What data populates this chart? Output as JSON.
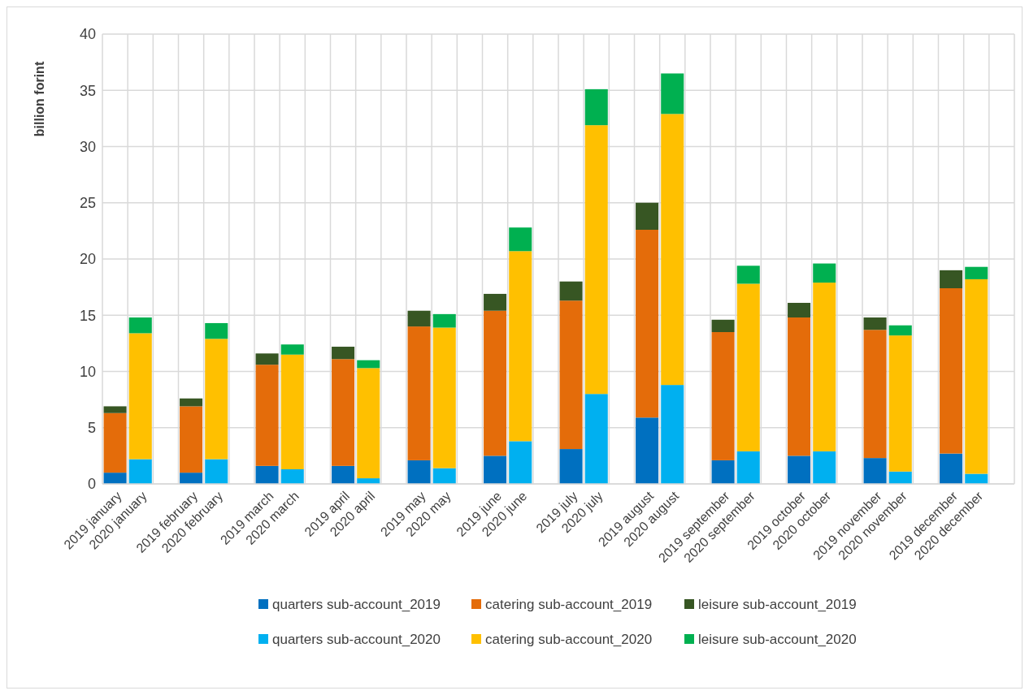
{
  "chart_data": {
    "type": "bar",
    "stacked": true,
    "ylabel": "billion forint",
    "categories": [
      "2019 january",
      "2020 january",
      null,
      "2019 february",
      "2020 february",
      null,
      "2019 march",
      "2020 march",
      null,
      "2019 april",
      "2020 april",
      null,
      "2019 may",
      "2020 may",
      null,
      "2019 june",
      "2020 june",
      null,
      "2019 july",
      "2020 july",
      null,
      "2019 august",
      "2020 august",
      null,
      "2019 september",
      "2020 september",
      null,
      "2019 october",
      "2020 october",
      null,
      "2019 november",
      "2020 november",
      null,
      "2019 december",
      "2020 december",
      null
    ],
    "series": [
      {
        "name": "quarters sub-account_2019",
        "color": "#0070c0",
        "values": [
          1.0,
          null,
          null,
          1.0,
          null,
          null,
          1.6,
          null,
          null,
          1.6,
          null,
          null,
          2.1,
          null,
          null,
          2.5,
          null,
          null,
          3.1,
          null,
          null,
          5.9,
          null,
          null,
          2.1,
          null,
          null,
          2.5,
          null,
          null,
          2.3,
          null,
          null,
          2.7,
          null,
          null
        ]
      },
      {
        "name": "catering sub-account_2019",
        "color": "#e46c0a",
        "values": [
          5.3,
          null,
          null,
          5.9,
          null,
          null,
          9.0,
          null,
          null,
          9.5,
          null,
          null,
          11.9,
          null,
          null,
          12.9,
          null,
          null,
          13.2,
          null,
          null,
          16.7,
          null,
          null,
          11.4,
          null,
          null,
          12.3,
          null,
          null,
          11.4,
          null,
          null,
          14.7,
          null,
          null
        ]
      },
      {
        "name": "leisure sub-account_2019",
        "color": "#375623",
        "values": [
          0.6,
          null,
          null,
          0.7,
          null,
          null,
          1.0,
          null,
          null,
          1.1,
          null,
          null,
          1.4,
          null,
          null,
          1.5,
          null,
          null,
          1.7,
          null,
          null,
          2.4,
          null,
          null,
          1.1,
          null,
          null,
          1.3,
          null,
          null,
          1.1,
          null,
          null,
          1.6,
          null,
          null
        ]
      },
      {
        "name": "quarters sub-account_2020",
        "color": "#00b0f0",
        "values": [
          null,
          2.2,
          null,
          null,
          2.2,
          null,
          null,
          1.3,
          null,
          null,
          0.5,
          null,
          null,
          1.4,
          null,
          null,
          3.8,
          null,
          null,
          8.0,
          null,
          null,
          8.8,
          null,
          null,
          2.9,
          null,
          null,
          2.9,
          null,
          null,
          1.1,
          null,
          null,
          0.9,
          null
        ]
      },
      {
        "name": "catering sub-account_2020",
        "color": "#ffc000",
        "values": [
          null,
          11.2,
          null,
          null,
          10.7,
          null,
          null,
          10.2,
          null,
          null,
          9.8,
          null,
          null,
          12.5,
          null,
          null,
          16.9,
          null,
          null,
          23.9,
          null,
          null,
          24.1,
          null,
          null,
          14.9,
          null,
          null,
          15.0,
          null,
          null,
          12.1,
          null,
          null,
          17.3,
          null
        ]
      },
      {
        "name": "leisure sub-account_2020",
        "color": "#00b050",
        "values": [
          null,
          1.4,
          null,
          null,
          1.4,
          null,
          null,
          0.9,
          null,
          null,
          0.7,
          null,
          null,
          1.2,
          null,
          null,
          2.1,
          null,
          null,
          3.2,
          null,
          null,
          3.6,
          null,
          null,
          1.6,
          null,
          null,
          1.7,
          null,
          null,
          0.9,
          null,
          null,
          1.1,
          null
        ]
      }
    ],
    "ylim": [
      0,
      40
    ],
    "yticks": [
      0,
      5,
      10,
      15,
      20,
      25,
      30,
      35,
      40
    ],
    "grid": true,
    "legend": "bottom"
  }
}
